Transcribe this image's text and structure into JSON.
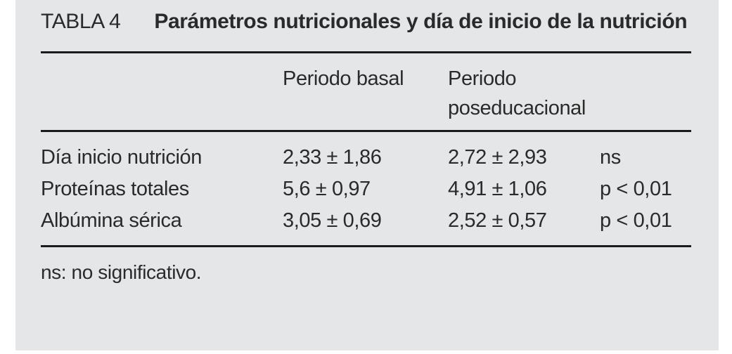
{
  "colors": {
    "page_background": "#ffffff",
    "panel_background": "#e5e6e7",
    "text": "#2a2a2a",
    "rule": "#1b1b1b"
  },
  "caption": {
    "tag": "TABLA 4",
    "title": "Parámetros nutricionales y día de inicio de la nutrición"
  },
  "table": {
    "col_headers": {
      "label": "",
      "basal": "Periodo basal",
      "post": "Periodo poseducacional",
      "significance": ""
    },
    "rows": [
      {
        "label": "Día inicio nutrición",
        "basal": "2,33 ± 1,86",
        "post": "2,72 ± 2,93",
        "significance": "ns"
      },
      {
        "label": "Proteínas totales",
        "basal": "5,6 ± 0,97",
        "post": "4,91 ± 1,06",
        "significance": "p < 0,01"
      },
      {
        "label": "Albúmina sérica",
        "basal": "3,05 ± 0,69",
        "post": "2,52 ± 0,57",
        "significance": "p < 0,01"
      }
    ]
  },
  "footnote": "ns: no significativo."
}
